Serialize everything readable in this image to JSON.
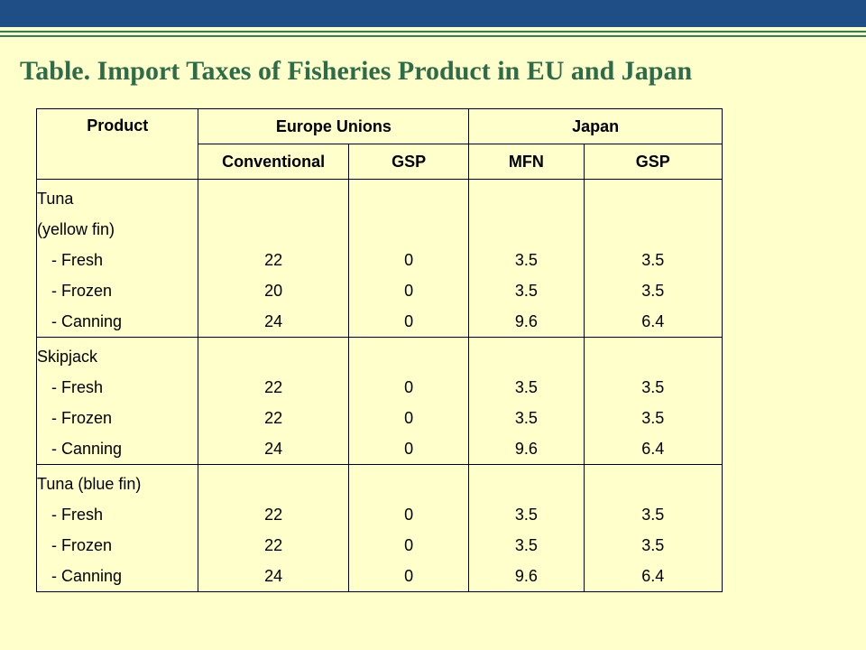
{
  "title": "Table. Import Taxes of Fisheries Product in EU and Japan",
  "headers": {
    "product": "Product",
    "eu": "Europe Unions",
    "japan": "Japan",
    "eu_conventional": "Conventional",
    "eu_gsp": "GSP",
    "jp_mfn": "MFN",
    "jp_gsp": "GSP"
  },
  "groups": [
    {
      "name": "Tuna",
      "subtitle": "(yellow fin)",
      "items": [
        {
          "label": "- Fresh",
          "eu_conventional": "22",
          "eu_gsp": "0",
          "jp_mfn": "3.5",
          "jp_gsp": "3.5"
        },
        {
          "label": "- Frozen",
          "eu_conventional": "20",
          "eu_gsp": "0",
          "jp_mfn": "3.5",
          "jp_gsp": "3.5"
        },
        {
          "label": "- Canning",
          "eu_conventional": "24",
          "eu_gsp": "0",
          "jp_mfn": "9.6",
          "jp_gsp": "6.4"
        }
      ]
    },
    {
      "name": "Skipjack",
      "items": [
        {
          "label": "- Fresh",
          "eu_conventional": "22",
          "eu_gsp": "0",
          "jp_mfn": "3.5",
          "jp_gsp": "3.5"
        },
        {
          "label": "- Frozen",
          "eu_conventional": "22",
          "eu_gsp": "0",
          "jp_mfn": "3.5",
          "jp_gsp": "3.5"
        },
        {
          "label": "- Canning",
          "eu_conventional": "24",
          "eu_gsp": "0",
          "jp_mfn": "9.6",
          "jp_gsp": "6.4"
        }
      ]
    },
    {
      "name": "Tuna (blue fin)",
      "items": [
        {
          "label": "- Fresh",
          "eu_conventional": "22",
          "eu_gsp": "0",
          "jp_mfn": "3.5",
          "jp_gsp": "3.5"
        },
        {
          "label": "- Frozen",
          "eu_conventional": "22",
          "eu_gsp": "0",
          "jp_mfn": "3.5",
          "jp_gsp": "3.5"
        },
        {
          "label": "- Canning",
          "eu_conventional": "24",
          "eu_gsp": "0",
          "jp_mfn": "9.6",
          "jp_gsp": "6.4"
        }
      ]
    }
  ],
  "colors": {
    "background": "#FFFFCC",
    "header_bar": "#1F4E87",
    "accent_lines": "#2E7D5B",
    "title": "#2E6B49"
  }
}
